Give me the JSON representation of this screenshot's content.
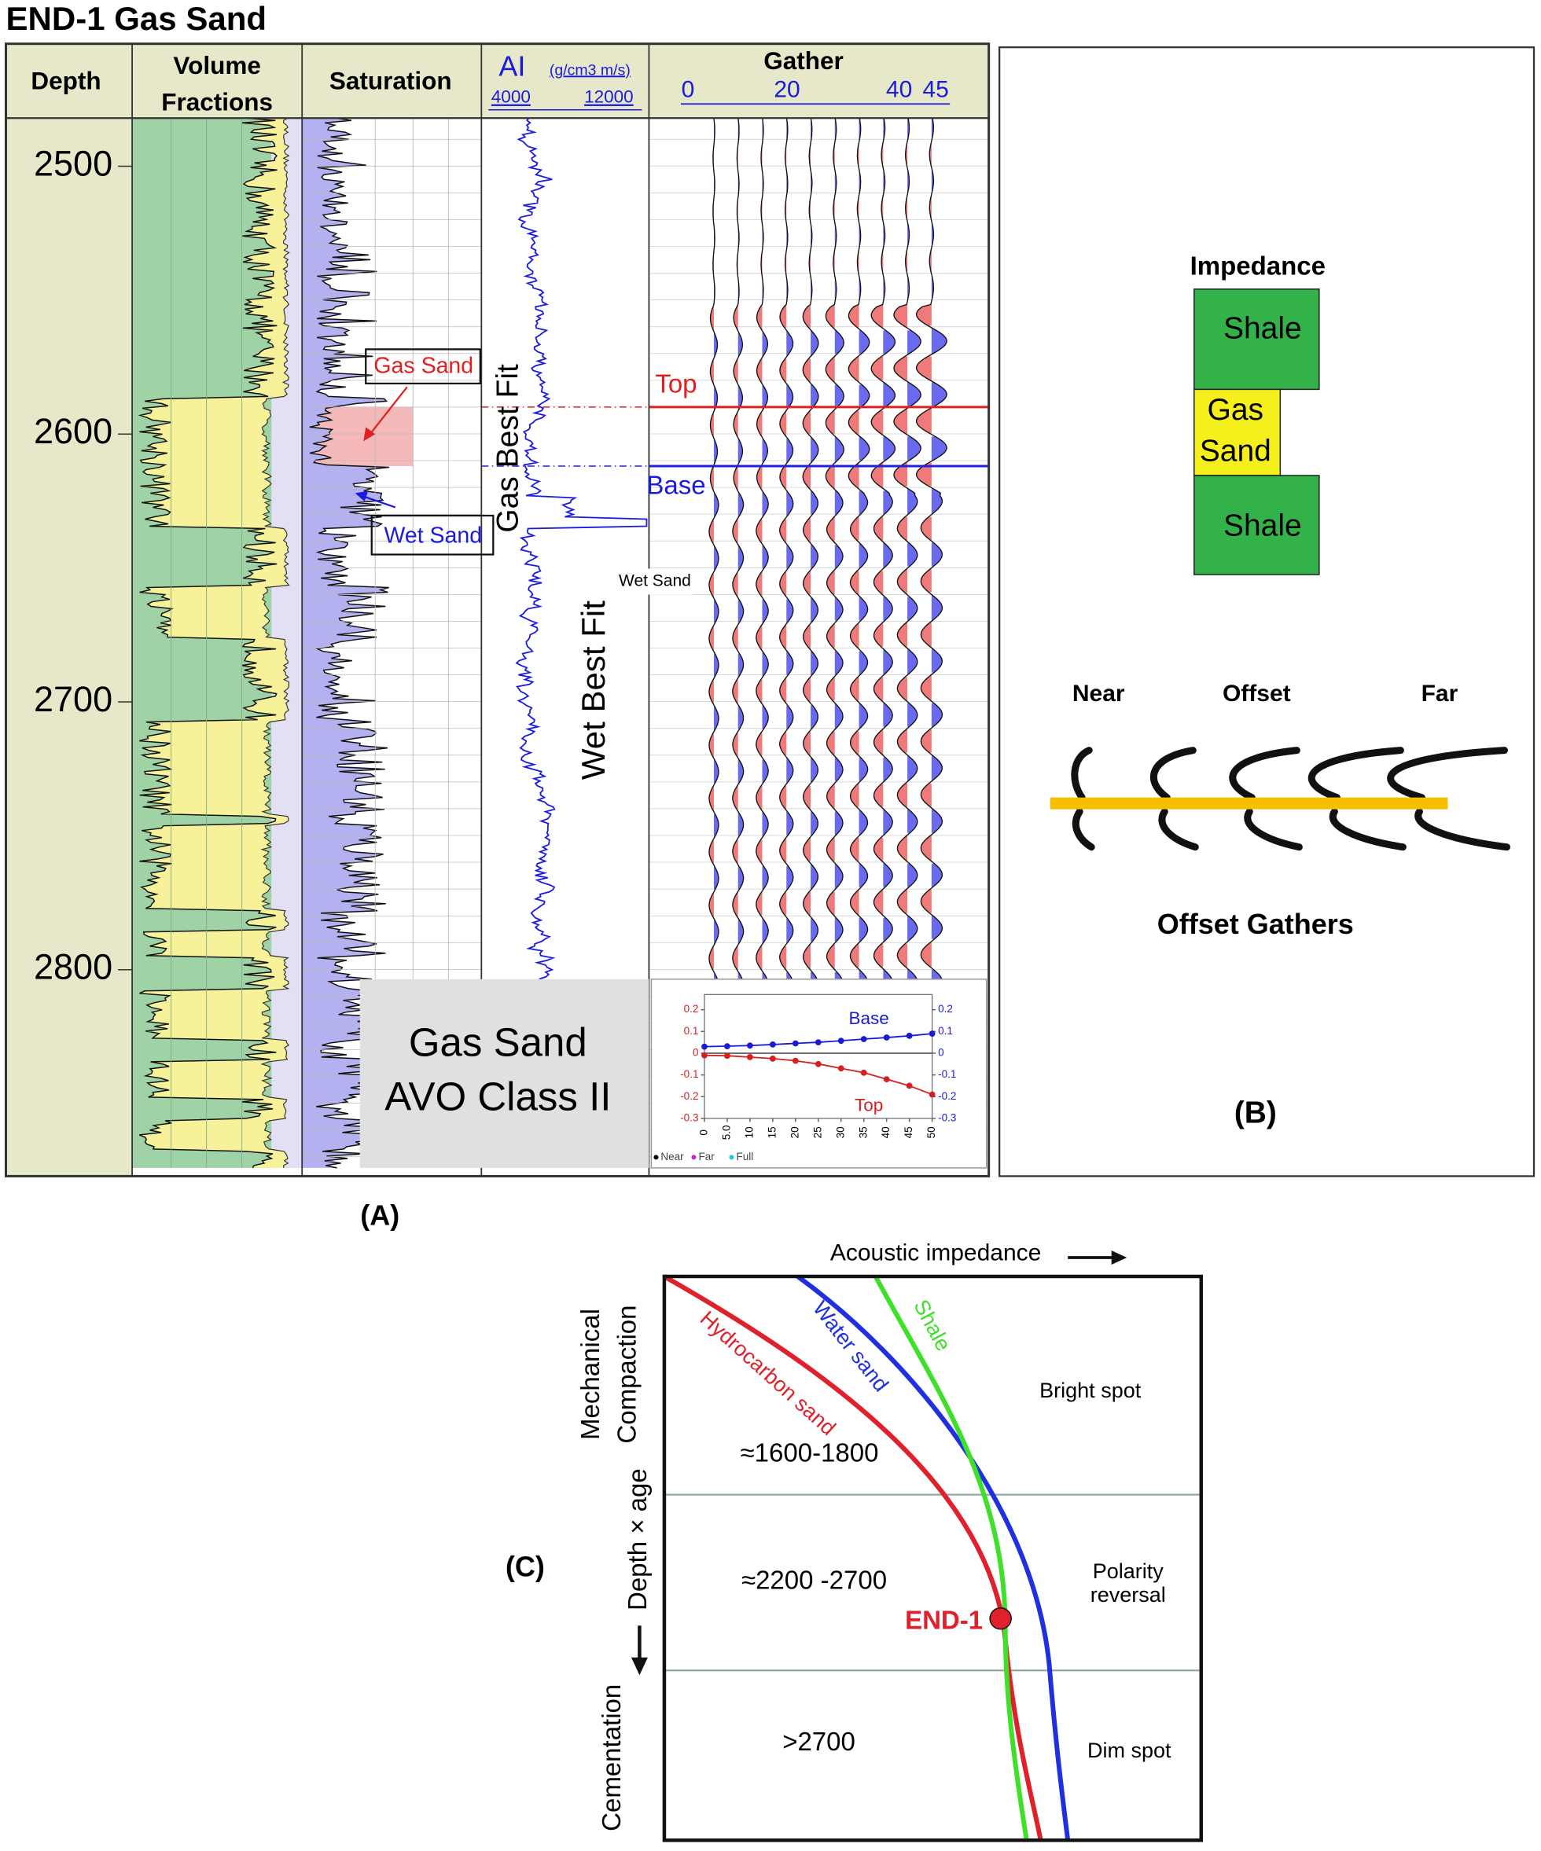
{
  "panel_a": {
    "title": "END-1 Gas Sand",
    "label": "(A)",
    "headers": {
      "depth": "Depth",
      "volume_fractions": [
        "Volume",
        "Fractions"
      ],
      "saturation": "Saturation",
      "ai": "AI",
      "ai_unit": "(g/cm3 m/s)",
      "ai_min": "4000",
      "ai_max": "12000",
      "gather": "Gather",
      "gather_offsets": [
        "0",
        "20",
        "40",
        "45"
      ]
    },
    "depth_range": [
      2482,
      2874
    ],
    "depth_ticks": [
      2500,
      2600,
      2700,
      2800
    ],
    "annotations": {
      "gas_sand": "Gas Sand",
      "wet_sand": "Wet Sand",
      "gas_best_fit": "Gas Best Fit",
      "wet_best_fit": "Wet Best Fit",
      "wet_sand_small": "Wet Sand",
      "top": "Top",
      "base": "Base"
    },
    "avo_box": [
      "Gas Sand",
      "AVO Class II"
    ],
    "avo_inset": {
      "type": "line",
      "x": [
        0,
        5,
        10,
        15,
        20,
        25,
        30,
        35,
        40,
        45,
        50
      ],
      "xlim": [
        0,
        50
      ],
      "ylim": [
        -0.3,
        0.27
      ],
      "xticks": [
        0,
        {
          "value": 5,
          "label": "5.0"
        },
        10,
        15,
        20,
        25,
        30,
        35,
        40,
        45,
        50
      ],
      "yticks": [
        0.2,
        0.1,
        0,
        -0.1,
        -0.2,
        -0.3
      ],
      "series": [
        {
          "name": "Base",
          "color": "#1a1ad6",
          "values": [
            0.03,
            0.032,
            0.035,
            0.04,
            0.045,
            0.05,
            0.057,
            0.065,
            0.072,
            0.08,
            0.09
          ]
        },
        {
          "name": "Top",
          "color": "#d42020",
          "values": [
            -0.01,
            -0.012,
            -0.018,
            -0.025,
            -0.035,
            -0.05,
            -0.07,
            -0.09,
            -0.12,
            -0.15,
            -0.19
          ]
        }
      ],
      "legend": [
        {
          "name": "Near",
          "color": "#000000"
        },
        {
          "name": "Far",
          "color": "#d020d0"
        },
        {
          "name": "Full",
          "color": "#20c8d0"
        }
      ]
    }
  },
  "panel_b": {
    "label": "(B)",
    "impedance": "Impedance",
    "layers": [
      "Shale",
      "Gas",
      "Sand",
      "Shale"
    ],
    "offsets": [
      "Near",
      "Offset",
      "Far"
    ],
    "caption": "Offset Gathers"
  },
  "panel_c": {
    "label": "(C)",
    "x_axis": "Acoustic impedance",
    "left_labels": [
      "Mechanical",
      "Compaction",
      "Depth × age",
      "Cementation"
    ],
    "curves": [
      "Hydrocarbon sand",
      "Water sand",
      "Shale"
    ],
    "zones": [
      "Bright spot",
      [
        "Polarity",
        "reversal"
      ],
      "Dim spot"
    ],
    "depths": [
      "≈1600-1800",
      "≈2200 -2700",
      ">2700"
    ],
    "well": "END-1"
  }
}
